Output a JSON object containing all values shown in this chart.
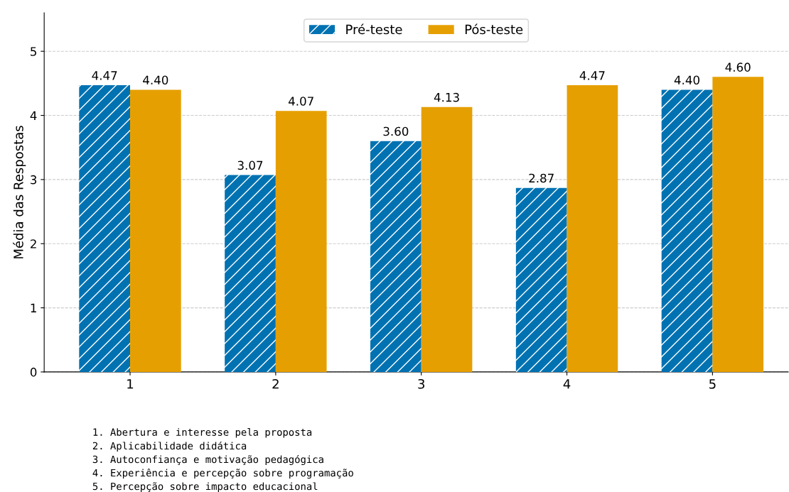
{
  "chart_data": {
    "type": "bar",
    "ylabel": "Média das Respostas",
    "categories": [
      "1",
      "2",
      "3",
      "4",
      "5"
    ],
    "series": [
      {
        "name": "Pré-teste",
        "color": "#0072b2",
        "values": [
          4.47,
          3.07,
          3.6,
          2.87,
          4.4
        ],
        "value_labels": [
          "4.47",
          "3.07",
          "3.60",
          "2.87",
          "4.40"
        ]
      },
      {
        "name": "Pós-teste",
        "color": "#e69f00",
        "values": [
          4.4,
          4.07,
          4.13,
          4.47,
          4.6
        ],
        "value_labels": [
          "4.40",
          "4.07",
          "4.13",
          "4.47",
          "4.60"
        ]
      }
    ],
    "ylim": [
      0,
      5.6
    ],
    "yticks": [
      0,
      1,
      2,
      3,
      4,
      5
    ],
    "grid": "y",
    "legend": "top",
    "annotations": [
      "1. Abertura e interesse pela proposta",
      "2. Aplicabilidade didática",
      "3. Autoconfiança e motivação pedagógica",
      "4. Experiência e percepção sobre programação",
      "5. Percepção sobre impacto educacional"
    ]
  }
}
